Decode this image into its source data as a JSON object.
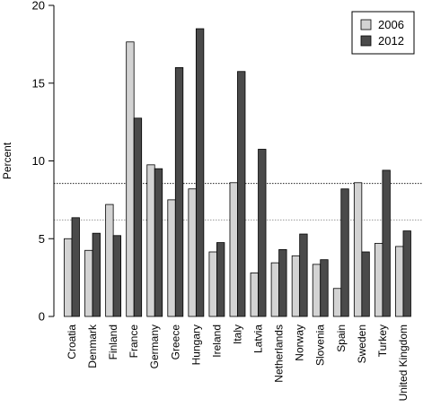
{
  "chart_data": {
    "type": "bar",
    "categories": [
      "Croatia",
      "Denmark",
      "Finland",
      "France",
      "Germany",
      "Greece",
      "Hungary",
      "Ireland",
      "Italy",
      "Latvia",
      "Netherlands",
      "Norway",
      "Slovenia",
      "Spain",
      "Sweden",
      "Turkey",
      "United Kingdom"
    ],
    "series": [
      {
        "name": "2006",
        "color": "#d3d3d3",
        "values": [
          5.0,
          4.25,
          7.2,
          17.65,
          9.75,
          7.5,
          8.2,
          4.15,
          8.6,
          2.8,
          3.45,
          3.9,
          3.35,
          1.8,
          8.6,
          4.7,
          4.5
        ]
      },
      {
        "name": "2012",
        "color": "#4a4a4a",
        "values": [
          6.35,
          5.35,
          5.2,
          12.75,
          9.5,
          16.0,
          18.5,
          4.75,
          15.75,
          10.75,
          4.3,
          5.3,
          3.65,
          8.2,
          4.15,
          9.4,
          5.5
        ]
      }
    ],
    "reference_lines": [
      {
        "series": "2006",
        "value": 6.2,
        "style": "dotted",
        "color": "#9a9a9a"
      },
      {
        "series": "2012",
        "value": 8.55,
        "style": "dotted",
        "color": "#222222"
      }
    ],
    "ylabel": "Percent",
    "xlabel": "",
    "ylim": [
      0,
      20
    ],
    "yticks": [
      0,
      5,
      10,
      15,
      20
    ],
    "grid": false,
    "legend_position": "top-right"
  }
}
